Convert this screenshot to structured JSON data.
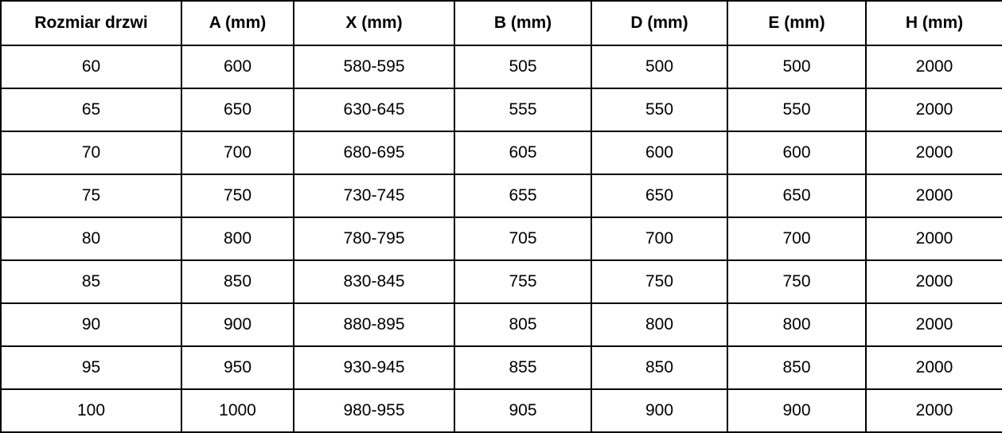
{
  "colors": {
    "border": "#000000",
    "text": "#000000",
    "background": "#ffffff"
  },
  "table": {
    "columns": [
      {
        "label": "Rozmiar drzwi"
      },
      {
        "label": "A (mm)"
      },
      {
        "label": "X (mm)"
      },
      {
        "label": "B (mm)"
      },
      {
        "label": "D (mm)"
      },
      {
        "label": "E (mm)"
      },
      {
        "label": "H (mm)"
      }
    ],
    "rows": [
      [
        "60",
        "600",
        "580-595",
        "505",
        "500",
        "500",
        "2000"
      ],
      [
        "65",
        "650",
        "630-645",
        "555",
        "550",
        "550",
        "2000"
      ],
      [
        "70",
        "700",
        "680-695",
        "605",
        "600",
        "600",
        "2000"
      ],
      [
        "75",
        "750",
        "730-745",
        "655",
        "650",
        "650",
        "2000"
      ],
      [
        "80",
        "800",
        "780-795",
        "705",
        "700",
        "700",
        "2000"
      ],
      [
        "85",
        "850",
        "830-845",
        "755",
        "750",
        "750",
        "2000"
      ],
      [
        "90",
        "900",
        "880-895",
        "805",
        "800",
        "800",
        "2000"
      ],
      [
        "95",
        "950",
        "930-945",
        "855",
        "850",
        "850",
        "2000"
      ],
      [
        "100",
        "1000",
        "980-955",
        "905",
        "900",
        "900",
        "2000"
      ]
    ]
  }
}
